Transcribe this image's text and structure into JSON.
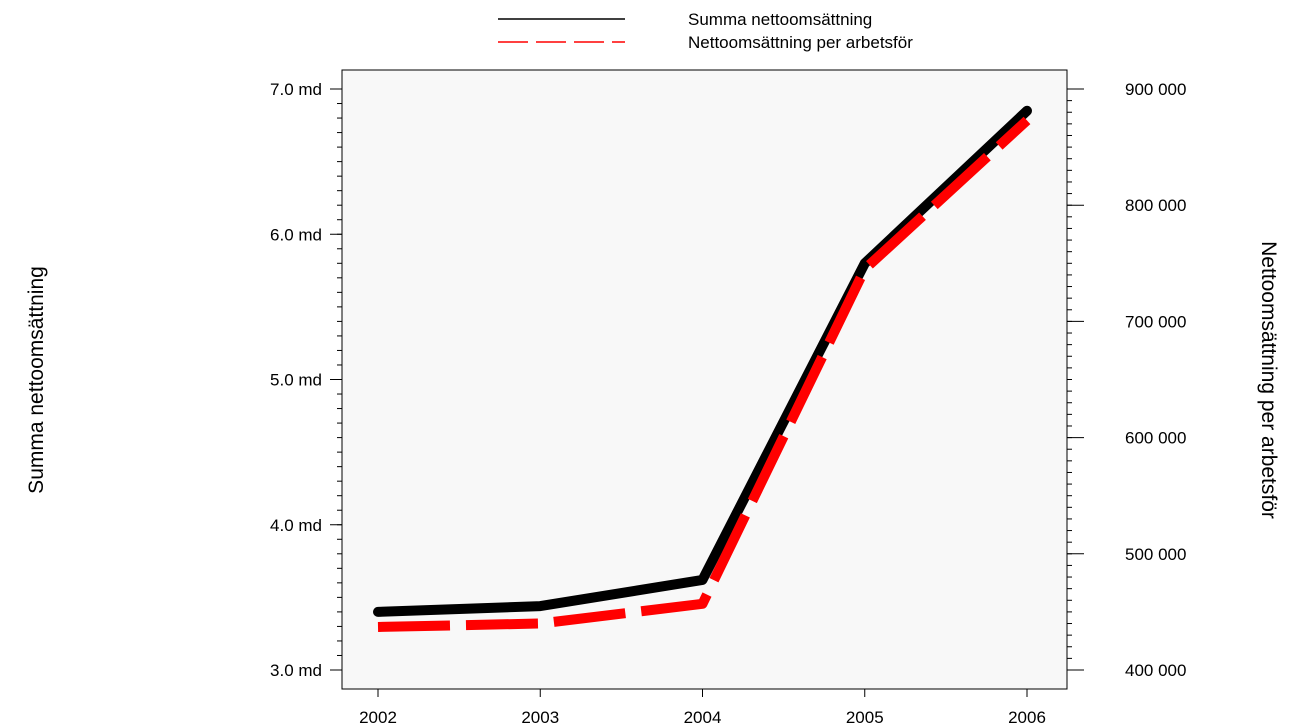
{
  "chart_data": {
    "type": "line",
    "categories": [
      "2002",
      "2003",
      "2004",
      "2005",
      "2006"
    ],
    "series": [
      {
        "name": "Summa nettoomsättning",
        "axis": "left",
        "values": [
          3.4,
          3.44,
          3.62,
          5.8,
          6.85
        ],
        "color": "#000000",
        "style": "solid"
      },
      {
        "name": "Nettoomsättning per arbetsför",
        "axis": "right",
        "values": [
          437000,
          440000,
          457000,
          745000,
          873000
        ],
        "color": "#ff0000",
        "style": "dashed"
      }
    ],
    "left_axis": {
      "label": "Summa nettoomsättning",
      "ylim": [
        3.0,
        7.0
      ],
      "ticks": [
        3.0,
        4.0,
        5.0,
        6.0,
        7.0
      ],
      "tick_labels": [
        "3.0 md",
        "4.0 md",
        "5.0 md",
        "6.0 md",
        "7.0 md"
      ]
    },
    "right_axis": {
      "label": "Nettoomsättning per arbetsför",
      "ylim": [
        400000,
        900000
      ],
      "ticks": [
        400000,
        500000,
        600000,
        700000,
        800000,
        900000
      ],
      "tick_labels": [
        "400 000",
        "500 000",
        "600 000",
        "700 000",
        "800 000",
        "900 000"
      ]
    },
    "legend": {
      "placement": "top-center",
      "entries": [
        "Summa nettoomsättning",
        "Nettoomsättning per arbetsför"
      ]
    },
    "grid": false,
    "plot_background": "#f8f8f8"
  }
}
